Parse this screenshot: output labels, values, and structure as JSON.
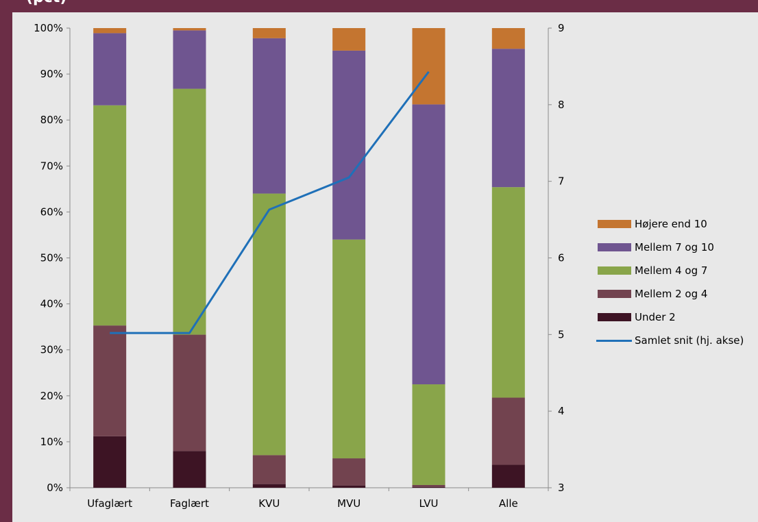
{
  "header": {
    "title": "(pct)"
  },
  "chart_data": {
    "type": "bar",
    "stacked": true,
    "categories": [
      "Ufaglært",
      "Faglært",
      "KVU",
      "MVU",
      "LVU",
      "Alle"
    ],
    "series": [
      {
        "name": "Under 2",
        "color": "#3d1424",
        "values": [
          11.2,
          8.0,
          0.8,
          0.5,
          0.2,
          5.0
        ]
      },
      {
        "name": "Mellem 2 og 4",
        "color": "#72434f",
        "values": [
          24.1,
          25.3,
          6.3,
          5.9,
          0.4,
          14.6
        ]
      },
      {
        "name": "Mellem 4 og 7",
        "color": "#89a54a",
        "values": [
          47.9,
          53.5,
          56.9,
          47.6,
          21.9,
          45.8
        ]
      },
      {
        "name": "Mellem 7 og 10",
        "color": "#6f5590",
        "values": [
          15.7,
          12.7,
          33.8,
          41.1,
          60.9,
          30.1
        ]
      },
      {
        "name": "Højere end 10",
        "color": "#c47530",
        "values": [
          1.1,
          0.5,
          2.2,
          4.9,
          16.6,
          4.5
        ]
      }
    ],
    "line_series": {
      "name": "Samlet snit (hj. akse)",
      "color": "#1f70b8",
      "axis": "right",
      "values": [
        5.02,
        5.02,
        6.63,
        7.05,
        8.43,
        null
      ]
    },
    "left_axis": {
      "ylim": [
        0,
        100
      ],
      "ticks": [
        "0%",
        "10%",
        "20%",
        "30%",
        "40%",
        "50%",
        "60%",
        "70%",
        "80%",
        "90%",
        "100%"
      ]
    },
    "right_axis": {
      "ylim": [
        3,
        9
      ],
      "ticks": [
        "3",
        "4",
        "5",
        "6",
        "7",
        "8",
        "9"
      ]
    },
    "legend_position": "right",
    "legend_order": [
      "Højere end 10",
      "Mellem 7 og 10",
      "Mellem 4 og 7",
      "Mellem 2 og 4",
      "Under 2",
      "Samlet snit (hj. akse)"
    ],
    "grid": false
  }
}
